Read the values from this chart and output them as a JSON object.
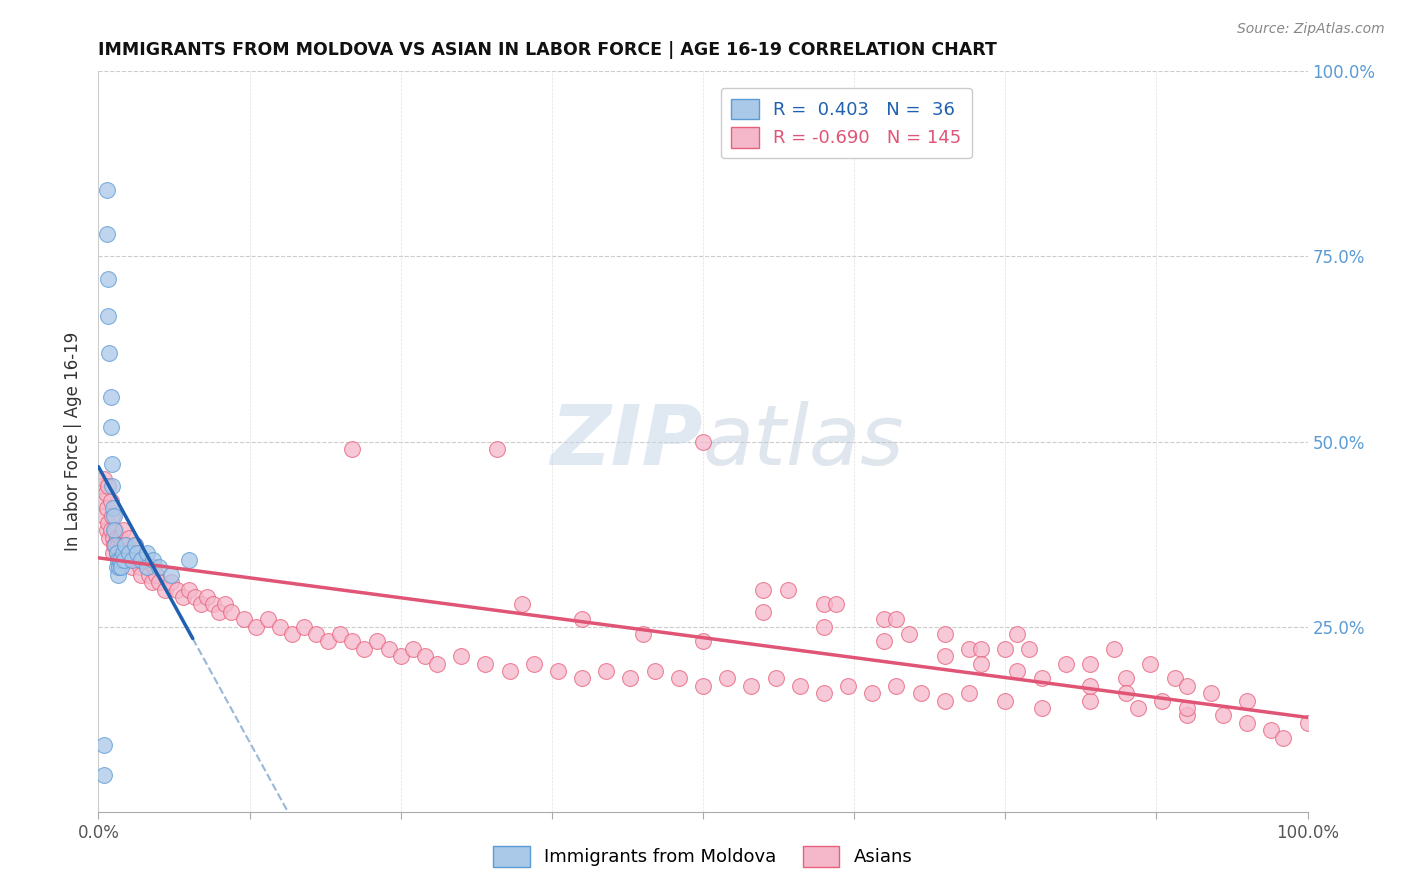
{
  "title": "IMMIGRANTS FROM MOLDOVA VS ASIAN IN LABOR FORCE | AGE 16-19 CORRELATION CHART",
  "source": "Source: ZipAtlas.com",
  "ylabel": "In Labor Force | Age 16-19",
  "xlim": [
    0.0,
    1.0
  ],
  "ylim": [
    0.0,
    1.0
  ],
  "moldova_color": "#aac8e8",
  "moldova_edge_color": "#5b9bd5",
  "asian_color": "#f5b8cb",
  "asian_edge_color": "#e8607a",
  "moldova_line_color": "#2060b0",
  "asian_line_color": "#e05575",
  "watermark_color": "#ccdaeb",
  "moldova_points_x": [
    0.005,
    0.007,
    0.007,
    0.008,
    0.008,
    0.009,
    0.01,
    0.01,
    0.011,
    0.011,
    0.012,
    0.013,
    0.013,
    0.014,
    0.015,
    0.015,
    0.016,
    0.016,
    0.017,
    0.018,
    0.019,
    0.02,
    0.021,
    0.022,
    0.025,
    0.028,
    0.03,
    0.032,
    0.035,
    0.04,
    0.04,
    0.045,
    0.05,
    0.06,
    0.075,
    0.005
  ],
  "moldova_points_y": [
    0.09,
    0.84,
    0.78,
    0.72,
    0.67,
    0.62,
    0.56,
    0.52,
    0.47,
    0.44,
    0.41,
    0.4,
    0.38,
    0.36,
    0.35,
    0.33,
    0.34,
    0.32,
    0.33,
    0.34,
    0.33,
    0.35,
    0.34,
    0.36,
    0.35,
    0.34,
    0.36,
    0.35,
    0.34,
    0.35,
    0.33,
    0.34,
    0.33,
    0.32,
    0.34,
    0.05
  ],
  "asian_points_x": [
    0.003,
    0.004,
    0.005,
    0.005,
    0.006,
    0.007,
    0.007,
    0.008,
    0.008,
    0.009,
    0.01,
    0.01,
    0.011,
    0.012,
    0.012,
    0.013,
    0.014,
    0.015,
    0.015,
    0.016,
    0.017,
    0.018,
    0.019,
    0.02,
    0.021,
    0.022,
    0.023,
    0.024,
    0.025,
    0.026,
    0.027,
    0.028,
    0.03,
    0.031,
    0.032,
    0.034,
    0.035,
    0.037,
    0.04,
    0.042,
    0.044,
    0.046,
    0.048,
    0.05,
    0.055,
    0.06,
    0.065,
    0.07,
    0.075,
    0.08,
    0.085,
    0.09,
    0.095,
    0.1,
    0.105,
    0.11,
    0.12,
    0.13,
    0.14,
    0.15,
    0.16,
    0.17,
    0.18,
    0.19,
    0.2,
    0.21,
    0.22,
    0.23,
    0.24,
    0.25,
    0.26,
    0.27,
    0.28,
    0.3,
    0.32,
    0.34,
    0.36,
    0.38,
    0.4,
    0.42,
    0.44,
    0.46,
    0.48,
    0.5,
    0.52,
    0.54,
    0.56,
    0.58,
    0.6,
    0.62,
    0.64,
    0.66,
    0.68,
    0.7,
    0.72,
    0.75,
    0.78,
    0.82,
    0.86,
    0.9,
    0.21,
    0.33,
    0.5,
    0.55,
    0.6,
    0.65,
    0.7,
    0.75,
    0.8,
    0.85,
    0.57,
    0.61,
    0.66,
    0.67,
    0.72,
    0.73,
    0.76,
    0.77,
    0.82,
    0.84,
    0.87,
    0.89,
    0.9,
    0.92,
    0.95,
    0.55,
    0.6,
    0.65,
    0.7,
    0.73,
    0.76,
    0.78,
    0.82,
    0.85,
    0.88,
    0.9,
    0.93,
    0.95,
    0.97,
    0.98,
    1.0,
    0.35,
    0.4,
    0.45,
    0.5,
    0.55
  ],
  "asian_points_y": [
    0.44,
    0.42,
    0.45,
    0.4,
    0.43,
    0.41,
    0.38,
    0.44,
    0.39,
    0.37,
    0.42,
    0.38,
    0.4,
    0.37,
    0.35,
    0.36,
    0.38,
    0.37,
    0.35,
    0.36,
    0.35,
    0.37,
    0.36,
    0.38,
    0.36,
    0.35,
    0.34,
    0.36,
    0.37,
    0.35,
    0.34,
    0.33,
    0.36,
    0.35,
    0.34,
    0.33,
    0.32,
    0.34,
    0.33,
    0.32,
    0.31,
    0.33,
    0.32,
    0.31,
    0.3,
    0.31,
    0.3,
    0.29,
    0.3,
    0.29,
    0.28,
    0.29,
    0.28,
    0.27,
    0.28,
    0.27,
    0.26,
    0.25,
    0.26,
    0.25,
    0.24,
    0.25,
    0.24,
    0.23,
    0.24,
    0.23,
    0.22,
    0.23,
    0.22,
    0.21,
    0.22,
    0.21,
    0.2,
    0.21,
    0.2,
    0.19,
    0.2,
    0.19,
    0.18,
    0.19,
    0.18,
    0.19,
    0.18,
    0.17,
    0.18,
    0.17,
    0.18,
    0.17,
    0.16,
    0.17,
    0.16,
    0.17,
    0.16,
    0.15,
    0.16,
    0.15,
    0.14,
    0.15,
    0.14,
    0.13,
    0.49,
    0.49,
    0.5,
    0.3,
    0.28,
    0.26,
    0.24,
    0.22,
    0.2,
    0.18,
    0.3,
    0.28,
    0.26,
    0.24,
    0.22,
    0.22,
    0.24,
    0.22,
    0.2,
    0.22,
    0.2,
    0.18,
    0.17,
    0.16,
    0.15,
    0.27,
    0.25,
    0.23,
    0.21,
    0.2,
    0.19,
    0.18,
    0.17,
    0.16,
    0.15,
    0.14,
    0.13,
    0.12,
    0.11,
    0.1,
    0.12,
    0.28,
    0.26,
    0.24,
    0.23,
    0.22
  ]
}
